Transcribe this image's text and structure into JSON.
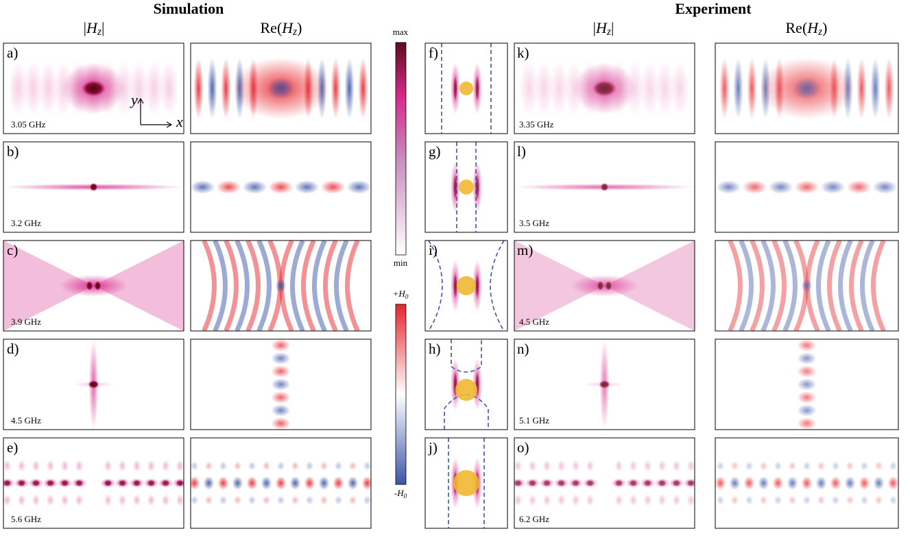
{
  "headers": {
    "simulation": "Simulation",
    "experiment": "Experiment"
  },
  "column_titles": [
    {
      "pre": "|",
      "var": "H",
      "sub": "z",
      "post": "|"
    },
    {
      "pre": "Re(",
      "var": "H",
      "sub": "z",
      "post": ")"
    },
    {
      "pre": "|",
      "var": "H",
      "sub": "z",
      "post": "|"
    },
    {
      "pre": "Re(",
      "var": "H",
      "sub": "z",
      "post": ")"
    }
  ],
  "colorbars": {
    "magnitude": {
      "top": "max",
      "bottom": "min"
    },
    "field": {
      "top": {
        "pre": "+",
        "var": "H",
        "sub": "0"
      },
      "bottom": {
        "pre": "-",
        "var": "H",
        "sub": "0"
      }
    }
  },
  "axes_inset": {
    "y": "y",
    "x": "x"
  },
  "simulation": [
    {
      "label": "a)",
      "frequency": "3.05 GHz"
    },
    {
      "label": "b)",
      "frequency": "3.2 GHz"
    },
    {
      "label": "c)",
      "frequency": "3.9 GHz"
    },
    {
      "label": "d)",
      "frequency": "4.5 GHz"
    },
    {
      "label": "e)",
      "frequency": "5.6 GHz"
    }
  ],
  "geometry": [
    "f)",
    "g)",
    "i)",
    "h)",
    "j)"
  ],
  "experiment": [
    {
      "label": "k)",
      "frequency": "3.35 GHz"
    },
    {
      "label": "l)",
      "frequency": "3.5 GHz"
    },
    {
      "label": "m)",
      "frequency": "4.5 GHz"
    },
    {
      "label": "n)",
      "frequency": "5.1 GHz"
    },
    {
      "label": "o)",
      "frequency": "6.2 GHz"
    }
  ]
}
